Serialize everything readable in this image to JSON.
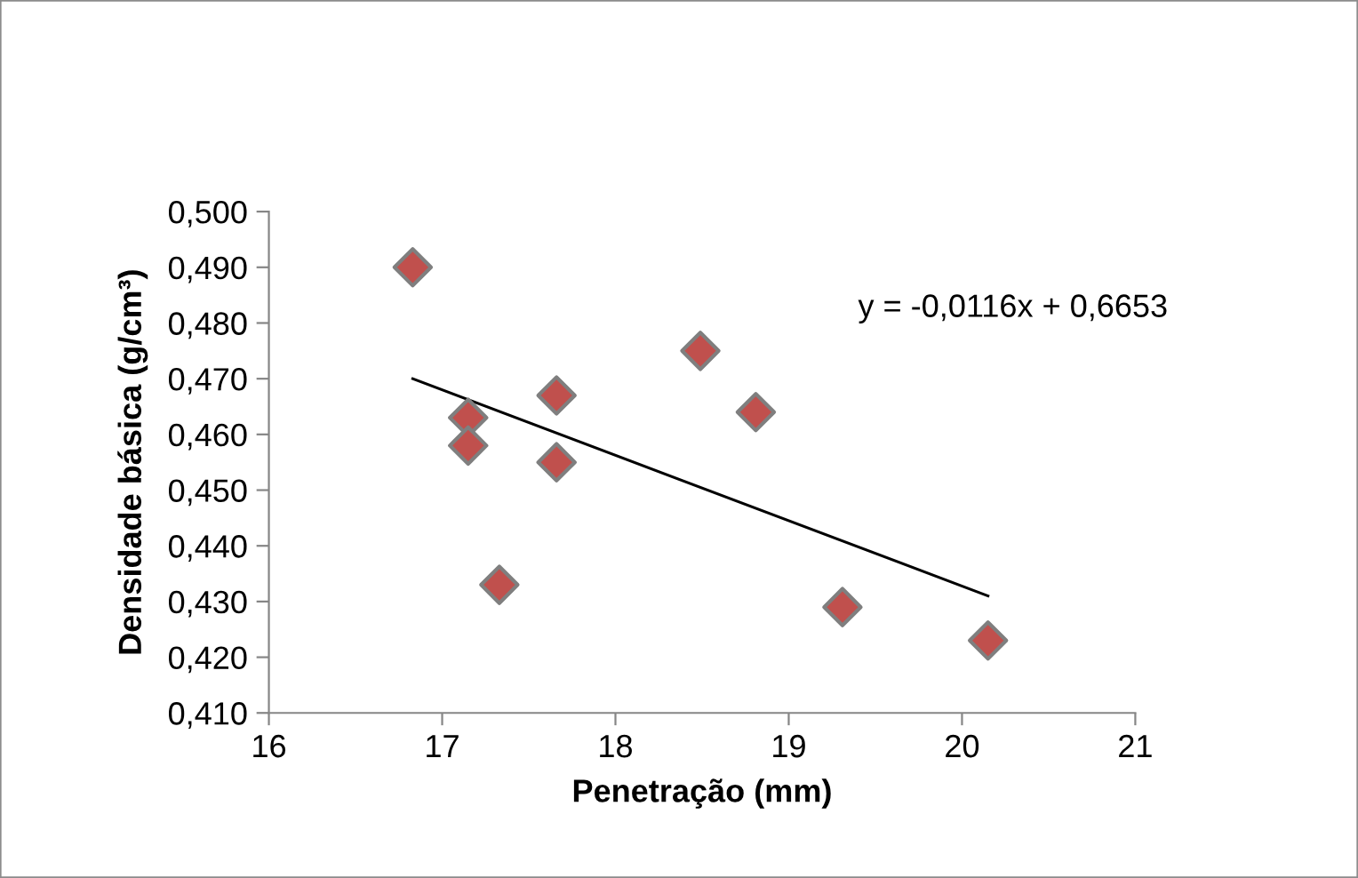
{
  "chart_data": {
    "type": "scatter",
    "xlabel": "Penetração (mm)",
    "ylabel": "Densidade básica (g/cm³)",
    "x": [
      16.83,
      17.15,
      17.15,
      17.33,
      17.66,
      17.66,
      18.49,
      18.81,
      19.31,
      20.15
    ],
    "series": [
      {
        "color": "#c0504d",
        "marker": "diamond",
        "values": [
          0.49,
          0.463,
          0.458,
          0.433,
          0.467,
          0.455,
          0.475,
          0.464,
          0.429,
          0.423
        ]
      },
      {
        "type": "line",
        "color": "#000000",
        "x": [
          16.83,
          20.15
        ],
        "values": [
          0.47,
          0.431
        ],
        "marker": "none",
        "line_style": "solid"
      }
    ],
    "xlim": [
      16,
      21
    ],
    "xticks": [
      16,
      17,
      18,
      19,
      20,
      21
    ],
    "ylim": [
      0.41,
      0.5
    ],
    "yticks": [
      {
        "value": 0.41,
        "label": "0,410"
      },
      {
        "value": 0.42,
        "label": "0,420"
      },
      {
        "value": 0.43,
        "label": "0,430"
      },
      {
        "value": 0.44,
        "label": "0,440"
      },
      {
        "value": 0.45,
        "label": "0,450"
      },
      {
        "value": 0.46,
        "label": "0,460"
      },
      {
        "value": 0.47,
        "label": "0,470"
      },
      {
        "value": 0.48,
        "label": "0,480"
      },
      {
        "value": 0.49,
        "label": "0,490"
      },
      {
        "value": 0.5,
        "label": "0,500"
      }
    ],
    "annotations": [
      "y = -0,0116x + 0,6653"
    ],
    "grid": false,
    "legend": false
  }
}
